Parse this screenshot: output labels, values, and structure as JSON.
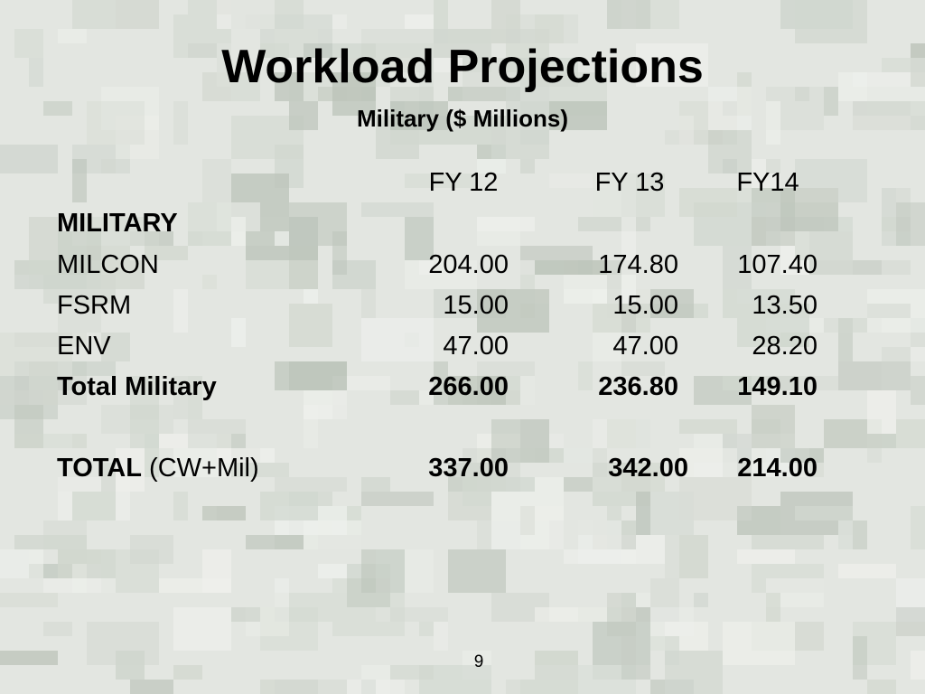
{
  "slide": {
    "title": "Workload Projections",
    "subtitle": "Military ($ Millions)",
    "page_number": "9",
    "background": "camouflage-pattern",
    "colors": {
      "text": "#000000",
      "background_base": "#e3e6e1",
      "background_mid": "#d1d7cf",
      "background_dark": "#bcc4ba"
    }
  },
  "table": {
    "columns": [
      "FY 12",
      "FY 13",
      "FY14"
    ],
    "section_heading": "MILITARY",
    "rows": [
      {
        "label": "MILCON",
        "values": [
          "204.00",
          "174.80",
          "107.40"
        ]
      },
      {
        "label": "FSRM",
        "values": [
          "15.00",
          "15.00",
          "13.50"
        ]
      },
      {
        "label": "ENV",
        "values": [
          "47.00",
          "47.00",
          "28.20"
        ]
      }
    ],
    "subtotal": {
      "label": "Total Military",
      "values": [
        "266.00",
        "236.80",
        "149.10"
      ]
    },
    "grand_total": {
      "label_bold": "TOTAL",
      "label_suffix": "(CW+Mil)",
      "values": [
        "337.00",
        "342.00",
        "214.00"
      ]
    }
  }
}
